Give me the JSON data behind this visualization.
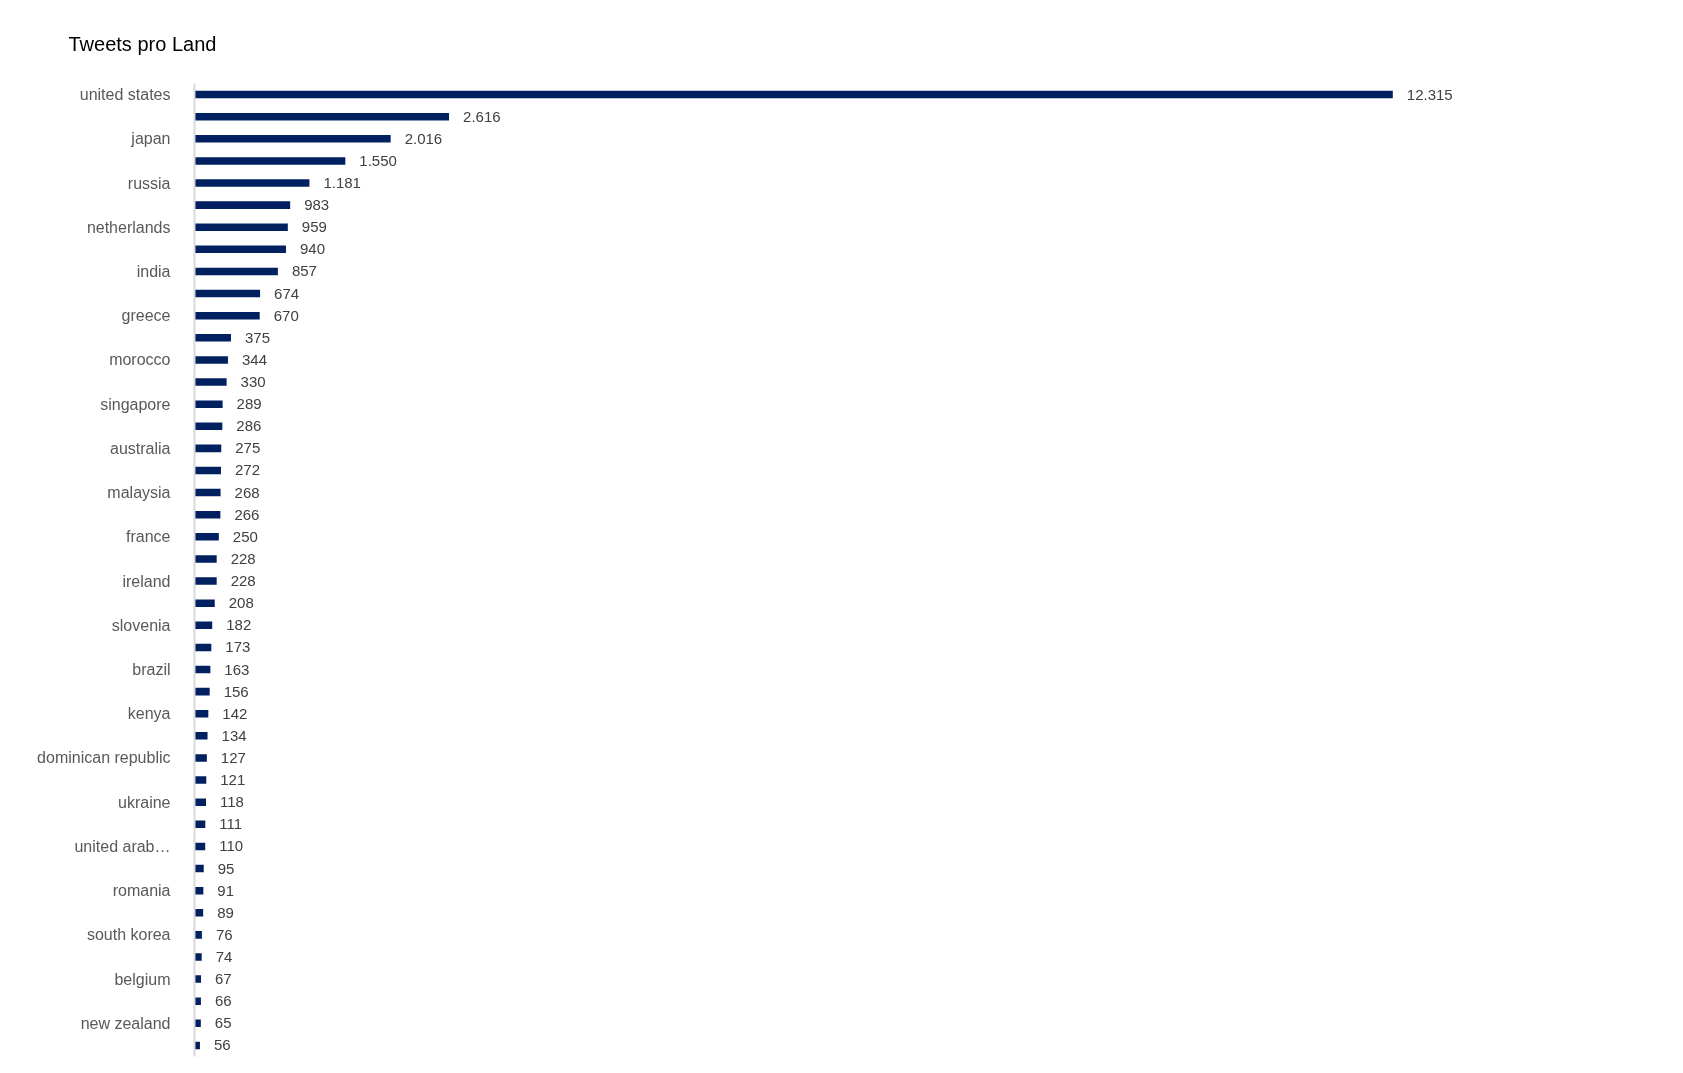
{
  "chart_data": {
    "type": "bar",
    "orientation": "horizontal",
    "title": "Tweets pro Land",
    "tick_labels": "y",
    "color": "#002060",
    "categories": [
      "united states",
      null,
      "japan",
      null,
      "russia",
      null,
      "netherlands",
      null,
      "india",
      null,
      "greece",
      null,
      "morocco",
      null,
      "singapore",
      null,
      "australia",
      null,
      "malaysia",
      null,
      "france",
      null,
      "ireland",
      null,
      "slovenia",
      null,
      "brazil",
      null,
      "kenya",
      null,
      "dominican republic",
      null,
      "ukraine",
      null,
      "united arab…",
      null,
      "romania",
      null,
      "south korea",
      null,
      "belgium",
      null,
      "new zealand",
      null
    ],
    "values": [
      12315,
      2616,
      2016,
      1550,
      1181,
      983,
      959,
      940,
      857,
      674,
      670,
      375,
      344,
      330,
      289,
      286,
      275,
      272,
      268,
      266,
      250,
      228,
      228,
      208,
      182,
      173,
      163,
      156,
      142,
      134,
      127,
      121,
      118,
      111,
      110,
      95,
      91,
      89,
      76,
      74,
      67,
      66,
      65,
      56
    ],
    "value_labels": [
      "12.315",
      "2.616",
      "2.016",
      "1.550",
      "1.181",
      "983",
      "959",
      "940",
      "857",
      "674",
      "670",
      "375",
      "344",
      "330",
      "289",
      "286",
      "275",
      "272",
      "268",
      "266",
      "250",
      "228",
      "228",
      "208",
      "182",
      "173",
      "163",
      "156",
      "142",
      "134",
      "127",
      "121",
      "118",
      "111",
      "110",
      "95",
      "91",
      "89",
      "76",
      "74",
      "67",
      "66",
      "65",
      "56"
    ]
  }
}
